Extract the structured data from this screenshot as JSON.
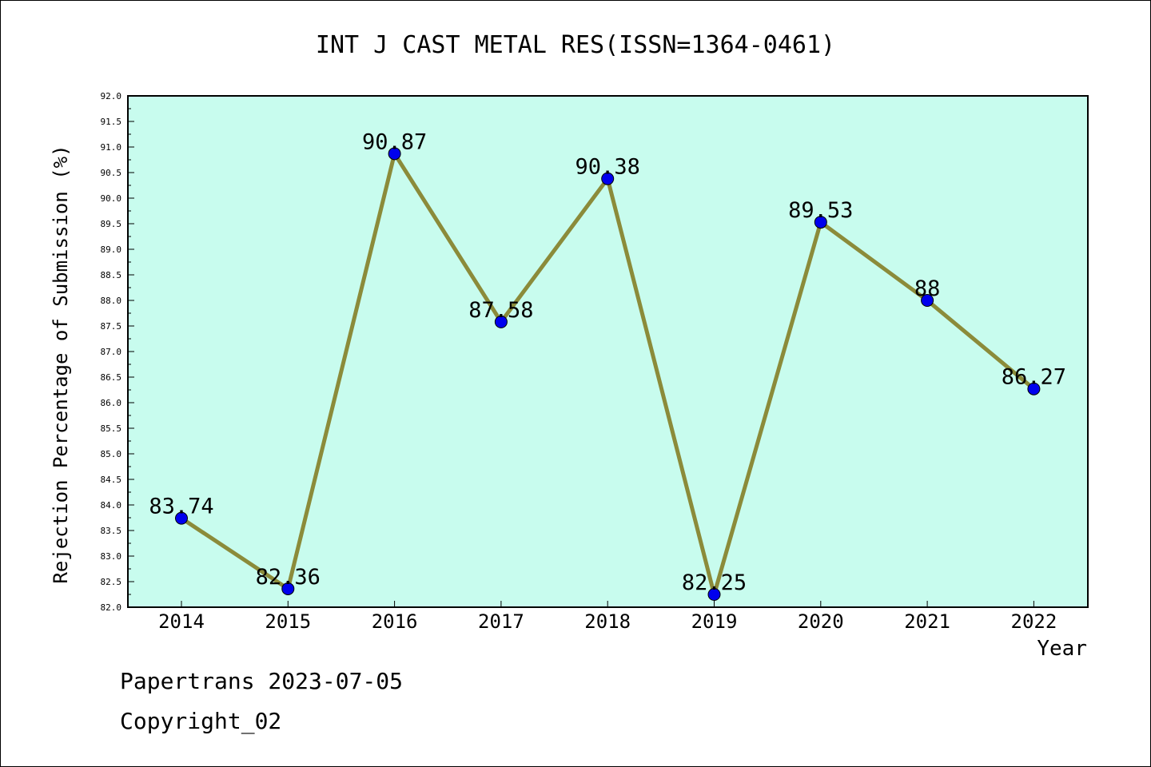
{
  "footer": {
    "line1": "Papertrans 2023-07-05",
    "line2": "Copyright_02"
  },
  "chart_data": {
    "type": "line",
    "title": "INT J CAST METAL RES(ISSN=1364-0461)",
    "xlabel": "Year",
    "ylabel": "Rejection Percentage of Submission (%)",
    "categories": [
      "2014",
      "2015",
      "2016",
      "2017",
      "2018",
      "2019",
      "2020",
      "2021",
      "2022"
    ],
    "values": [
      83.74,
      82.36,
      90.87,
      87.58,
      90.38,
      82.25,
      89.53,
      88,
      86.27
    ],
    "data_labels": [
      "83.74",
      "82.36",
      "90.87",
      "87.58",
      "90.38",
      "82.25",
      "89.53",
      "88",
      "86.27"
    ],
    "ylim": [
      82.0,
      92.0
    ],
    "ytick_step": 0.5,
    "grid": false,
    "legend": "none",
    "colors": {
      "plot_background": "#c8fcee",
      "line": "#8b8b3a",
      "marker": "#0000ee"
    }
  }
}
